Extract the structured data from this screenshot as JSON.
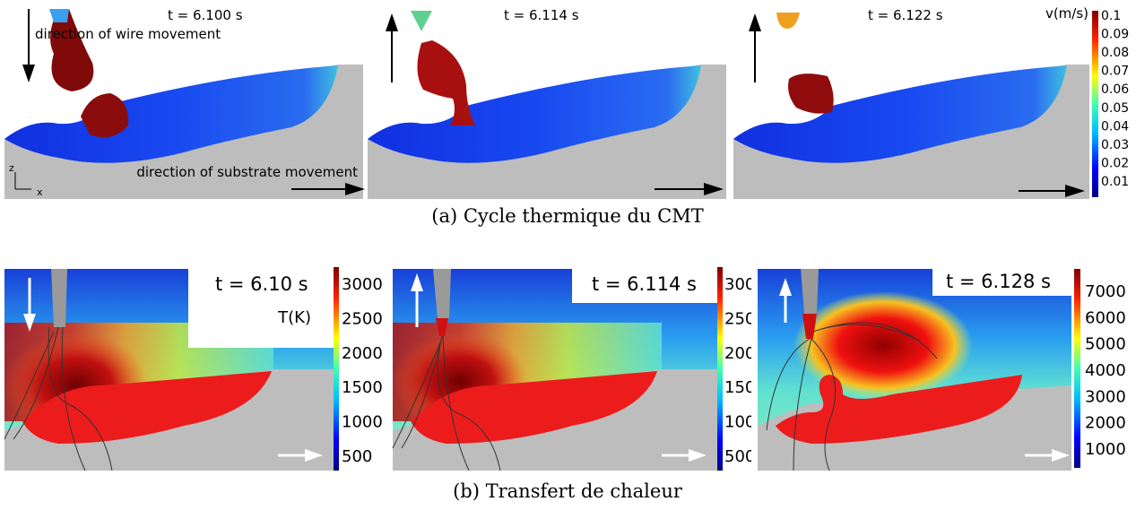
{
  "panel_a": {
    "caption": "(a) Cycle thermique du CMT",
    "frames": [
      {
        "time": "t = 6.100 s"
      },
      {
        "time": "t = 6.114 s"
      },
      {
        "time": "t = 6.122 s"
      }
    ],
    "annotations": {
      "wire": "direction of wire movement",
      "substrate": "direction of substrate movement",
      "axis_z": "z",
      "axis_x": "x"
    },
    "colorbar": {
      "title": "v(m/s)",
      "ticks": [
        "0.1",
        "0.09",
        "0.08",
        "0.07",
        "0.06",
        "0.05",
        "0.04",
        "0.03",
        "0.02",
        "0.01"
      ]
    }
  },
  "panel_b": {
    "caption": "(b) Transfert de chaleur",
    "frames": [
      {
        "time": "t = 6.10 s",
        "colorbar": {
          "title": "T(K)",
          "ticks": [
            "3000",
            "2500",
            "2000",
            "1500",
            "1000",
            "500"
          ]
        }
      },
      {
        "time": "t = 6.114 s",
        "colorbar": {
          "ticks": [
            "300",
            "250",
            "200",
            "150",
            "100",
            "500"
          ]
        }
      },
      {
        "time": "t = 6.128 s",
        "colorbar": {
          "ticks": [
            "7000",
            "6000",
            "5000",
            "4000",
            "3000",
            "2000",
            "1000"
          ]
        }
      }
    ]
  }
}
